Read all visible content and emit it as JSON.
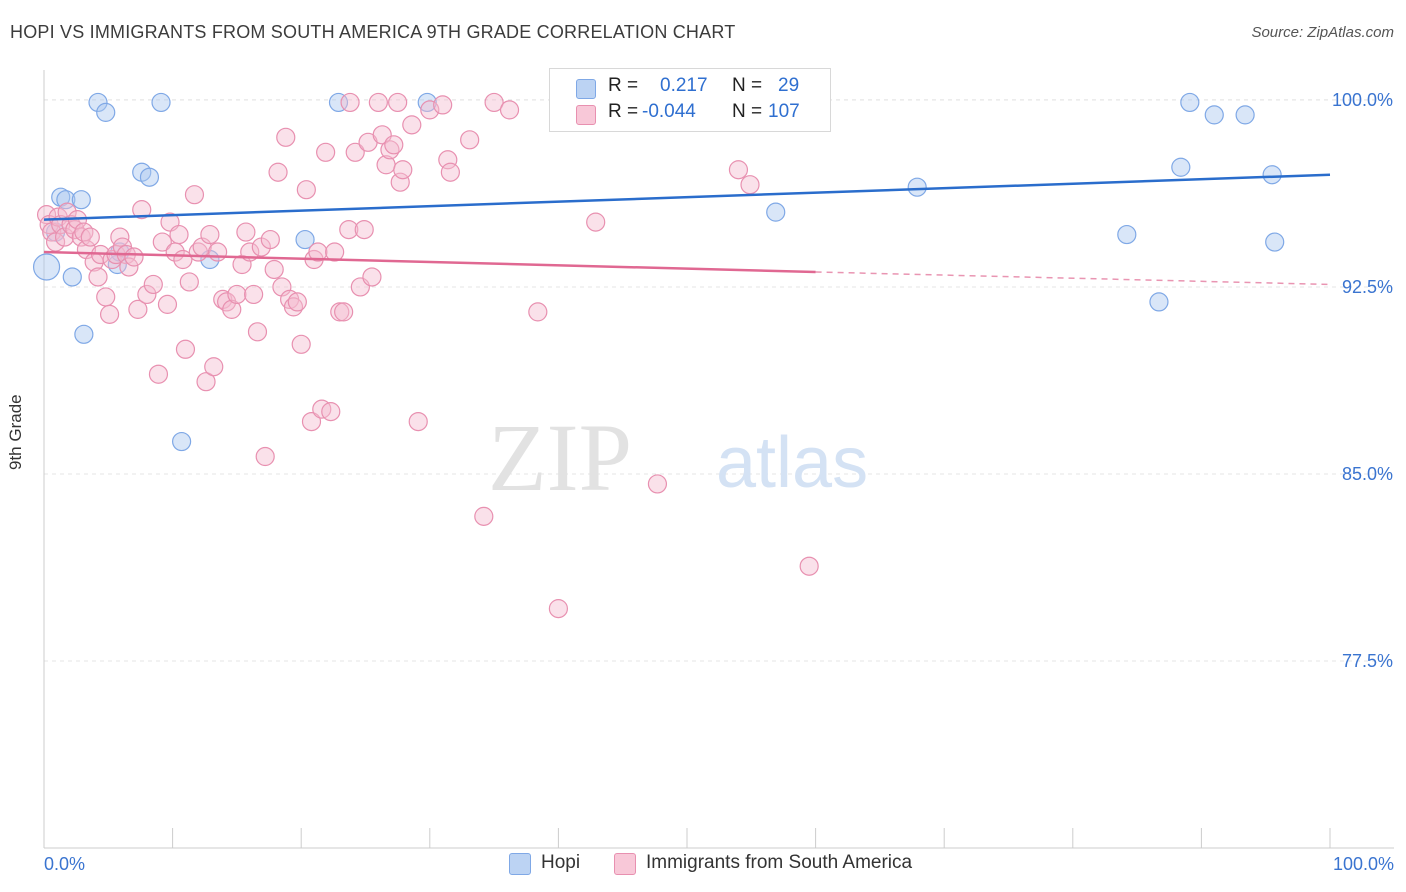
{
  "title": "HOPI VS IMMIGRANTS FROM SOUTH AMERICA 9TH GRADE CORRELATION CHART",
  "source": "Source: ZipAtlas.com",
  "watermark": {
    "zip": "ZIP",
    "atlas": "atlas"
  },
  "legend": {
    "r_label": "R =",
    "n_label": "N =",
    "rows": [
      {
        "r": "0.217",
        "n": "29"
      },
      {
        "r": "-0.044",
        "n": "107"
      }
    ]
  },
  "chart_data": {
    "type": "scatter",
    "title": "HOPI VS IMMIGRANTS FROM SOUTH AMERICA 9TH GRADE CORRELATION CHART",
    "xlabel": "",
    "ylabel": "9th Grade",
    "xlim": [
      0,
      100
    ],
    "ylim": [
      70.0,
      101.2
    ],
    "x_tick_labels": {
      "left": "0.0%",
      "right": "100.0%"
    },
    "y_ticks": [
      {
        "value": 100.0,
        "label": "100.0%"
      },
      {
        "value": 92.5,
        "label": "92.5%"
      },
      {
        "value": 85.0,
        "label": "85.0%"
      },
      {
        "value": 77.5,
        "label": "77.5%"
      }
    ],
    "grid": true,
    "legend_position": "top-center",
    "series": [
      {
        "name": "Hopi",
        "color": "#7fa8e6",
        "fill": "#aac8f0",
        "line_color": "#2a6dcc",
        "r": 0.217,
        "n": 29,
        "trend": {
          "x0": 0,
          "y0": 95.2,
          "x1": 100,
          "y1": 97.0
        },
        "points": [
          [
            0.2,
            93.3
          ],
          [
            0.9,
            94.7
          ],
          [
            1.3,
            96.1
          ],
          [
            1.7,
            96.0
          ],
          [
            2.2,
            92.9
          ],
          [
            2.9,
            96.0
          ],
          [
            3.1,
            90.6
          ],
          [
            4.2,
            99.9
          ],
          [
            4.8,
            99.5
          ],
          [
            5.7,
            93.4
          ],
          [
            5.9,
            93.9
          ],
          [
            7.6,
            97.1
          ],
          [
            8.2,
            96.9
          ],
          [
            9.1,
            99.9
          ],
          [
            10.7,
            86.3
          ],
          [
            12.9,
            93.6
          ],
          [
            20.3,
            94.4
          ],
          [
            22.9,
            99.9
          ],
          [
            29.8,
            99.9
          ],
          [
            56.9,
            95.5
          ],
          [
            67.9,
            96.5
          ],
          [
            84.2,
            94.6
          ],
          [
            86.7,
            91.9
          ],
          [
            88.4,
            97.3
          ],
          [
            89.1,
            99.9
          ],
          [
            91.0,
            99.4
          ],
          [
            93.4,
            99.4
          ],
          [
            95.5,
            97.0
          ],
          [
            95.7,
            94.3
          ]
        ]
      },
      {
        "name": "Immigrants from South America",
        "color": "#e890b0",
        "fill": "#f5bcd0",
        "line_color": "#e06892",
        "r": -0.044,
        "n": 107,
        "trend": {
          "x0": 0,
          "y0": 93.9,
          "x1": 60,
          "y1": 93.1,
          "dash_x1": 100,
          "dash_y1": 92.6
        },
        "points": [
          [
            0.2,
            95.4
          ],
          [
            0.4,
            95.0
          ],
          [
            0.6,
            94.7
          ],
          [
            0.9,
            94.3
          ],
          [
            1.1,
            95.3
          ],
          [
            1.3,
            95.0
          ],
          [
            1.6,
            94.5
          ],
          [
            1.8,
            95.5
          ],
          [
            2.1,
            95.0
          ],
          [
            2.4,
            94.8
          ],
          [
            2.6,
            95.2
          ],
          [
            2.9,
            94.5
          ],
          [
            3.1,
            94.7
          ],
          [
            3.3,
            94.0
          ],
          [
            3.6,
            94.5
          ],
          [
            3.9,
            93.5
          ],
          [
            4.2,
            92.9
          ],
          [
            4.4,
            93.8
          ],
          [
            4.8,
            92.1
          ],
          [
            5.1,
            91.4
          ],
          [
            5.3,
            93.6
          ],
          [
            5.6,
            93.8
          ],
          [
            5.9,
            94.5
          ],
          [
            6.1,
            94.1
          ],
          [
            6.4,
            93.8
          ],
          [
            6.6,
            93.3
          ],
          [
            7.0,
            93.7
          ],
          [
            7.3,
            91.6
          ],
          [
            7.6,
            95.6
          ],
          [
            8.0,
            92.2
          ],
          [
            8.5,
            92.6
          ],
          [
            8.9,
            89.0
          ],
          [
            9.2,
            94.3
          ],
          [
            9.6,
            91.8
          ],
          [
            9.8,
            95.1
          ],
          [
            10.2,
            93.9
          ],
          [
            10.5,
            94.6
          ],
          [
            10.8,
            93.6
          ],
          [
            11.0,
            90.0
          ],
          [
            11.3,
            92.7
          ],
          [
            11.7,
            96.2
          ],
          [
            12.0,
            93.9
          ],
          [
            12.3,
            94.1
          ],
          [
            12.6,
            88.7
          ],
          [
            12.9,
            94.6
          ],
          [
            13.2,
            89.3
          ],
          [
            13.5,
            93.9
          ],
          [
            13.9,
            92.0
          ],
          [
            14.2,
            91.9
          ],
          [
            14.6,
            91.6
          ],
          [
            15.0,
            92.2
          ],
          [
            15.4,
            93.4
          ],
          [
            15.7,
            94.7
          ],
          [
            16.0,
            93.9
          ],
          [
            16.3,
            92.2
          ],
          [
            16.6,
            90.7
          ],
          [
            16.9,
            94.1
          ],
          [
            17.2,
            85.7
          ],
          [
            17.6,
            94.4
          ],
          [
            17.9,
            93.2
          ],
          [
            18.2,
            97.1
          ],
          [
            18.5,
            92.5
          ],
          [
            18.8,
            98.5
          ],
          [
            19.1,
            92.0
          ],
          [
            19.4,
            91.7
          ],
          [
            19.7,
            91.9
          ],
          [
            20.0,
            90.2
          ],
          [
            20.4,
            96.4
          ],
          [
            20.8,
            87.1
          ],
          [
            21.0,
            93.6
          ],
          [
            21.3,
            93.9
          ],
          [
            21.6,
            87.6
          ],
          [
            21.9,
            97.9
          ],
          [
            22.3,
            87.5
          ],
          [
            22.6,
            93.9
          ],
          [
            23.0,
            91.5
          ],
          [
            23.3,
            91.5
          ],
          [
            23.7,
            94.8
          ],
          [
            23.8,
            99.9
          ],
          [
            24.2,
            97.9
          ],
          [
            24.6,
            92.5
          ],
          [
            24.9,
            94.8
          ],
          [
            25.2,
            98.3
          ],
          [
            25.5,
            92.9
          ],
          [
            26.0,
            99.9
          ],
          [
            26.3,
            98.6
          ],
          [
            26.6,
            97.4
          ],
          [
            26.9,
            98.0
          ],
          [
            27.2,
            98.2
          ],
          [
            27.5,
            99.9
          ],
          [
            27.7,
            96.7
          ],
          [
            27.9,
            97.2
          ],
          [
            28.6,
            99.0
          ],
          [
            29.1,
            87.1
          ],
          [
            30.0,
            99.6
          ],
          [
            31.0,
            99.8
          ],
          [
            31.4,
            97.6
          ],
          [
            31.6,
            97.1
          ],
          [
            33.1,
            98.4
          ],
          [
            34.2,
            83.3
          ],
          [
            35.0,
            99.9
          ],
          [
            36.2,
            99.6
          ],
          [
            38.4,
            91.5
          ],
          [
            40.0,
            79.6
          ],
          [
            42.9,
            95.1
          ],
          [
            47.7,
            84.6
          ],
          [
            54.9,
            96.6
          ],
          [
            54.0,
            97.2
          ],
          [
            59.5,
            81.3
          ]
        ]
      }
    ]
  },
  "bottom_legend": [
    "Hopi",
    "Immigrants from South America"
  ]
}
